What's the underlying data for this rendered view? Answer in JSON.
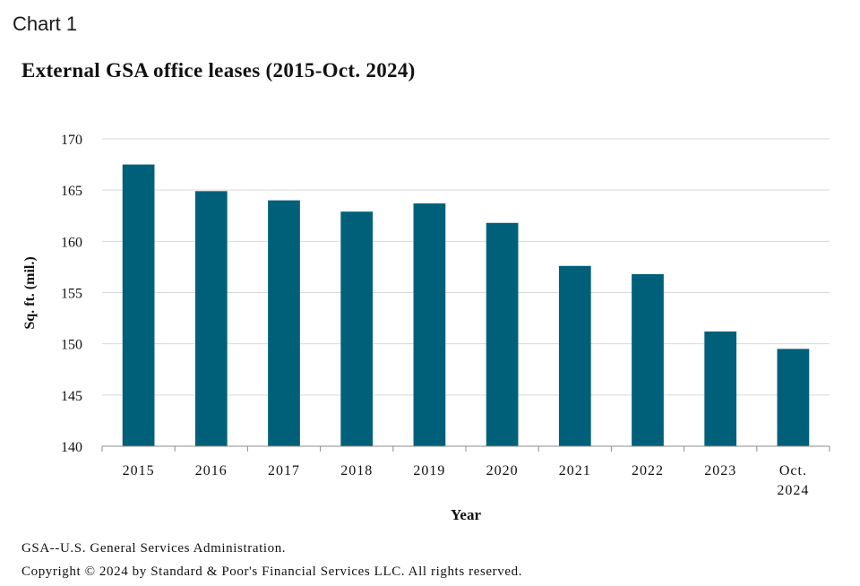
{
  "header": {
    "chart_label": "Chart 1",
    "title": "External GSA office leases (2015-Oct. 2024)"
  },
  "notes": {
    "definition": "GSA--U.S. General Services Administration.",
    "copyright": "Copyright © 2024 by Standard & Poor's Financial Services LLC. All rights reserved."
  },
  "colors": {
    "bar": "#00607A",
    "gridline": "#d9d9d9",
    "axis": "#8c8c8c"
  },
  "chart_data": {
    "type": "bar",
    "title": "External GSA office leases (2015-Oct. 2024)",
    "xlabel": "Year",
    "ylabel": "Sq. ft. (mil.)",
    "categories": [
      [
        "2015"
      ],
      [
        "2016"
      ],
      [
        "2017"
      ],
      [
        "2018"
      ],
      [
        "2019"
      ],
      [
        "2020"
      ],
      [
        "2021"
      ],
      [
        "2022"
      ],
      [
        "2023"
      ],
      [
        "Oct.",
        "2024"
      ]
    ],
    "values": [
      167.5,
      164.9,
      164.0,
      162.9,
      163.7,
      161.8,
      157.6,
      156.8,
      151.2,
      149.5
    ],
    "ylim": [
      140,
      170
    ],
    "yticks": [
      140,
      145,
      150,
      155,
      160,
      165,
      170
    ],
    "grid": true,
    "legend": "none"
  }
}
